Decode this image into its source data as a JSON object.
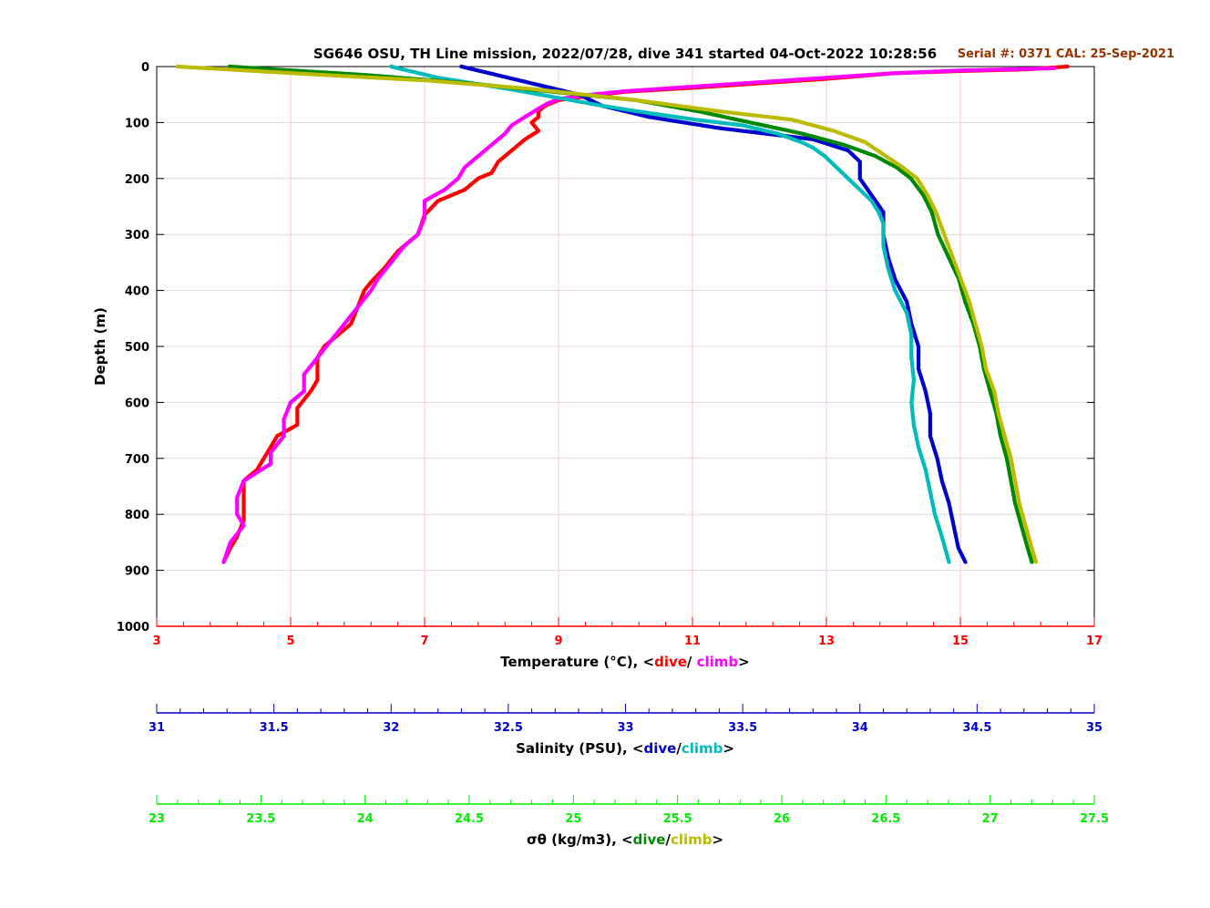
{
  "chart_data": [
    {
      "type": "scatter",
      "title": "SG646 OSU, TH Line mission, 2022/07/28, dive 341 started 04-Oct-2022 10:28:56",
      "annotation": "Serial #: 0371  CAL: 25-Sep-2021",
      "ylabel": "Depth (m)",
      "ylim": [
        0,
        1000
      ],
      "yreversed": true,
      "yticks": [
        0,
        100,
        200,
        300,
        400,
        500,
        600,
        700,
        800,
        900,
        1000
      ],
      "grid": true,
      "axes": [
        {
          "id": "temperature",
          "label_prefix": "Temperature (°C), <",
          "label_dive": "dive",
          "label_sep": "/ ",
          "label_climb": "climb",
          "label_suffix": ">",
          "xlim": [
            3,
            17
          ],
          "xticks": [
            3,
            5,
            7,
            9,
            11,
            13,
            15,
            17
          ],
          "color": "#ff0000",
          "dive_color": "#ff0000",
          "climb_color": "#ff00ff"
        },
        {
          "id": "salinity",
          "label_prefix": "Salinity (PSU), <",
          "label_dive": "dive",
          "label_sep": "/",
          "label_climb": "climb",
          "label_suffix": ">",
          "xlim": [
            31,
            35
          ],
          "xticks": [
            31,
            31.5,
            32,
            32.5,
            33,
            33.5,
            34,
            34.5,
            35
          ],
          "color": "#0000cc",
          "dive_color": "#0000cc",
          "climb_color": "#00bbbb"
        },
        {
          "id": "density",
          "label_prefix": "σθ (kg/m3), <",
          "label_dive": "dive",
          "label_sep": "/",
          "label_climb": "climb",
          "label_suffix": ">",
          "xlim": [
            23,
            27.5
          ],
          "xticks": [
            23,
            23.5,
            24,
            24.5,
            25,
            25.5,
            26,
            26.5,
            27,
            27.5
          ],
          "color": "#00ee00",
          "dive_color": "#008800",
          "climb_color": "#bbbb00"
        }
      ],
      "series": [
        {
          "name": "Temperature dive",
          "axis": "temperature",
          "role": "dive",
          "points": [
            [
              16.6,
              0
            ],
            [
              16.0,
              5
            ],
            [
              15.0,
              8
            ],
            [
              14.0,
              12
            ],
            [
              13.0,
              22
            ],
            [
              12.0,
              30
            ],
            [
              11.0,
              38
            ],
            [
              10.0,
              45
            ],
            [
              9.5,
              52
            ],
            [
              9.0,
              60
            ],
            [
              8.8,
              70
            ],
            [
              8.7,
              80
            ],
            [
              8.7,
              90
            ],
            [
              8.6,
              100
            ],
            [
              8.7,
              115
            ],
            [
              8.5,
              130
            ],
            [
              8.3,
              150
            ],
            [
              8.1,
              170
            ],
            [
              8.0,
              190
            ],
            [
              7.8,
              200
            ],
            [
              7.6,
              220
            ],
            [
              7.2,
              240
            ],
            [
              7.0,
              265
            ],
            [
              6.9,
              300
            ],
            [
              6.6,
              330
            ],
            [
              6.4,
              360
            ],
            [
              6.2,
              385
            ],
            [
              6.1,
              400
            ],
            [
              6.0,
              430
            ],
            [
              5.9,
              460
            ],
            [
              5.7,
              480
            ],
            [
              5.5,
              500
            ],
            [
              5.4,
              520
            ],
            [
              5.4,
              540
            ],
            [
              5.4,
              560
            ],
            [
              5.3,
              580
            ],
            [
              5.1,
              610
            ],
            [
              5.1,
              640
            ],
            [
              4.8,
              660
            ],
            [
              4.7,
              680
            ],
            [
              4.6,
              700
            ],
            [
              4.5,
              720
            ],
            [
              4.3,
              740
            ],
            [
              4.3,
              760
            ],
            [
              4.3,
              790
            ],
            [
              4.3,
              810
            ],
            [
              4.2,
              840
            ],
            [
              4.1,
              860
            ],
            [
              4.0,
              885
            ]
          ]
        },
        {
          "name": "Temperature climb",
          "axis": "temperature",
          "role": "climb",
          "points": [
            [
              16.4,
              3
            ],
            [
              15.0,
              7
            ],
            [
              14.0,
              12
            ],
            [
              13.0,
              20
            ],
            [
              12.0,
              28
            ],
            [
              11.0,
              36
            ],
            [
              10.0,
              44
            ],
            [
              9.5,
              50
            ],
            [
              9.0,
              58
            ],
            [
              8.8,
              68
            ],
            [
              8.5,
              90
            ],
            [
              8.3,
              105
            ],
            [
              8.2,
              120
            ],
            [
              8.0,
              140
            ],
            [
              7.8,
              160
            ],
            [
              7.6,
              180
            ],
            [
              7.5,
              200
            ],
            [
              7.3,
              220
            ],
            [
              7.0,
              240
            ],
            [
              7.0,
              270
            ],
            [
              6.9,
              300
            ],
            [
              6.7,
              320
            ],
            [
              6.5,
              350
            ],
            [
              6.3,
              380
            ],
            [
              6.2,
              400
            ],
            [
              6.0,
              430
            ],
            [
              5.8,
              460
            ],
            [
              5.6,
              490
            ],
            [
              5.4,
              520
            ],
            [
              5.2,
              550
            ],
            [
              5.2,
              580
            ],
            [
              5.0,
              600
            ],
            [
              4.9,
              630
            ],
            [
              4.9,
              660
            ],
            [
              4.7,
              690
            ],
            [
              4.7,
              710
            ],
            [
              4.3,
              740
            ],
            [
              4.2,
              770
            ],
            [
              4.2,
              800
            ],
            [
              4.3,
              820
            ],
            [
              4.1,
              850
            ],
            [
              4.0,
              885
            ]
          ]
        },
        {
          "name": "Salinity dive",
          "axis": "salinity",
          "role": "dive",
          "points": [
            [
              32.3,
              0
            ],
            [
              32.4,
              10
            ],
            [
              32.5,
              20
            ],
            [
              32.6,
              30
            ],
            [
              32.7,
              40
            ],
            [
              32.8,
              50
            ],
            [
              32.85,
              60
            ],
            [
              32.9,
              70
            ],
            [
              33.0,
              80
            ],
            [
              33.1,
              90
            ],
            [
              33.25,
              100
            ],
            [
              33.4,
              110
            ],
            [
              33.6,
              120
            ],
            [
              33.8,
              130
            ],
            [
              33.95,
              150
            ],
            [
              34.0,
              170
            ],
            [
              34.0,
              200
            ],
            [
              34.05,
              230
            ],
            [
              34.1,
              260
            ],
            [
              34.1,
              300
            ],
            [
              34.12,
              340
            ],
            [
              34.15,
              380
            ],
            [
              34.2,
              420
            ],
            [
              34.22,
              460
            ],
            [
              34.25,
              500
            ],
            [
              34.25,
              540
            ],
            [
              34.28,
              580
            ],
            [
              34.3,
              620
            ],
            [
              34.3,
              660
            ],
            [
              34.33,
              700
            ],
            [
              34.35,
              740
            ],
            [
              34.38,
              780
            ],
            [
              34.4,
              820
            ],
            [
              34.42,
              860
            ],
            [
              34.45,
              885
            ]
          ]
        },
        {
          "name": "Salinity climb",
          "axis": "salinity",
          "role": "climb",
          "points": [
            [
              32.0,
              0
            ],
            [
              32.1,
              10
            ],
            [
              32.2,
              20
            ],
            [
              32.35,
              30
            ],
            [
              32.5,
              40
            ],
            [
              32.7,
              55
            ],
            [
              32.9,
              70
            ],
            [
              33.05,
              80
            ],
            [
              33.3,
              95
            ],
            [
              33.5,
              105
            ],
            [
              33.65,
              120
            ],
            [
              33.75,
              135
            ],
            [
              33.8,
              145
            ],
            [
              33.85,
              160
            ],
            [
              33.9,
              180
            ],
            [
              33.95,
              200
            ],
            [
              34.0,
              220
            ],
            [
              34.05,
              240
            ],
            [
              34.08,
              260
            ],
            [
              34.1,
              280
            ],
            [
              34.1,
              320
            ],
            [
              34.12,
              360
            ],
            [
              34.15,
              400
            ],
            [
              34.2,
              440
            ],
            [
              34.22,
              480
            ],
            [
              34.22,
              520
            ],
            [
              34.23,
              560
            ],
            [
              34.22,
              600
            ],
            [
              34.23,
              640
            ],
            [
              34.25,
              680
            ],
            [
              34.28,
              720
            ],
            [
              34.3,
              760
            ],
            [
              34.32,
              800
            ],
            [
              34.35,
              840
            ],
            [
              34.38,
              885
            ]
          ]
        },
        {
          "name": "σθ dive",
          "axis": "density",
          "role": "dive",
          "points": [
            [
              23.35,
              0
            ],
            [
              24.0,
              15
            ],
            [
              24.5,
              30
            ],
            [
              24.9,
              45
            ],
            [
              25.3,
              60
            ],
            [
              25.6,
              80
            ],
            [
              25.85,
              100
            ],
            [
              26.1,
              120
            ],
            [
              26.3,
              140
            ],
            [
              26.45,
              160
            ],
            [
              26.55,
              180
            ],
            [
              26.62,
              200
            ],
            [
              26.68,
              230
            ],
            [
              26.72,
              260
            ],
            [
              26.75,
              300
            ],
            [
              26.8,
              340
            ],
            [
              26.85,
              380
            ],
            [
              26.88,
              420
            ],
            [
              26.92,
              460
            ],
            [
              26.95,
              500
            ],
            [
              26.97,
              540
            ],
            [
              27.0,
              580
            ],
            [
              27.03,
              620
            ],
            [
              27.05,
              660
            ],
            [
              27.08,
              700
            ],
            [
              27.1,
              740
            ],
            [
              27.12,
              780
            ],
            [
              27.15,
              820
            ],
            [
              27.18,
              860
            ],
            [
              27.2,
              885
            ]
          ]
        },
        {
          "name": "σθ climb",
          "axis": "density",
          "role": "climb",
          "points": [
            [
              23.1,
              0
            ],
            [
              23.8,
              15
            ],
            [
              24.3,
              25
            ],
            [
              24.8,
              40
            ],
            [
              25.3,
              60
            ],
            [
              25.7,
              80
            ],
            [
              26.05,
              95
            ],
            [
              26.25,
              115
            ],
            [
              26.4,
              135
            ],
            [
              26.5,
              160
            ],
            [
              26.58,
              180
            ],
            [
              26.65,
              200
            ],
            [
              26.7,
              230
            ],
            [
              26.74,
              260
            ],
            [
              26.78,
              300
            ],
            [
              26.82,
              340
            ],
            [
              26.86,
              380
            ],
            [
              26.9,
              420
            ],
            [
              26.93,
              460
            ],
            [
              26.96,
              500
            ],
            [
              26.98,
              540
            ],
            [
              27.02,
              580
            ],
            [
              27.04,
              620
            ],
            [
              27.07,
              660
            ],
            [
              27.1,
              700
            ],
            [
              27.12,
              740
            ],
            [
              27.14,
              780
            ],
            [
              27.17,
              820
            ],
            [
              27.2,
              860
            ],
            [
              27.22,
              885
            ]
          ]
        }
      ]
    }
  ]
}
